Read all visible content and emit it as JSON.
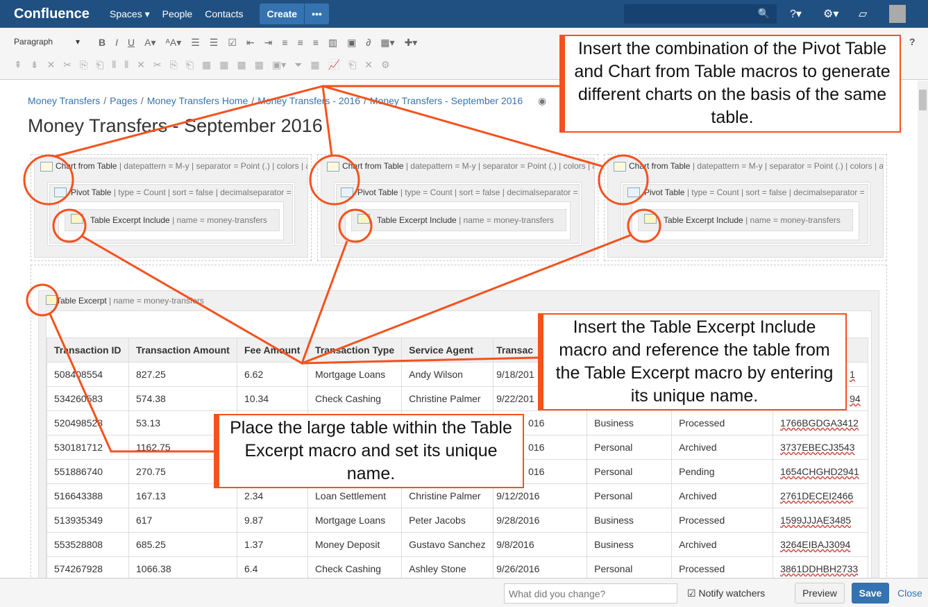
{
  "header": {
    "logo": "Confluence",
    "nav": [
      "Spaces ▾",
      "People",
      "Contacts"
    ],
    "create": "Create",
    "more": "•••",
    "search_icon": "search-icon",
    "help": "?▾",
    "settings": "⚙▾",
    "notifications": "inbox-icon"
  },
  "toolbar": {
    "paragraph": "Paragraph",
    "help": "?"
  },
  "breadcrumb": [
    "Money Transfers",
    "Pages",
    "Money Transfers Home",
    "Money Transfers - 2016",
    "Money Transfers - September 2016"
  ],
  "page_title": "Money Transfers - September 2016",
  "macros": {
    "chart_name": "Chart from Table",
    "chart_params": " | datepattern = M-y | separator = Point (.) | colors | a",
    "pivot_name": "Pivot Table",
    "pivot_params": " | type = Count | sort = false | decimalseparator = P",
    "include_name": "Table Excerpt Include",
    "include_params": " | name = money-transfers",
    "excerpt_name": "Table Excerpt",
    "excerpt_params": " | name = money-transfers"
  },
  "table": {
    "headers": [
      "Transaction ID",
      "Transaction Amount",
      "Fee Amount",
      "Transaction Type",
      "Service Agent",
      "Transac",
      "",
      "",
      ""
    ],
    "rows": [
      [
        "508408554",
        "827.25",
        "6.62",
        "Mortgage Loans",
        "Andy Wilson",
        "9/18/201",
        "",
        "",
        "1"
      ],
      [
        "534260583",
        "574.38",
        "10.34",
        "Check Cashing",
        "Christine Palmer",
        "9/22/201",
        "",
        "",
        "94"
      ],
      [
        "520498528",
        "53.13",
        "",
        "",
        "",
        "016",
        "Business",
        "Processed",
        "1766BGDGA3412"
      ],
      [
        "530181712",
        "1162.75",
        "",
        "",
        "",
        "016",
        "Personal",
        "Archived",
        "3737EBECJ3543"
      ],
      [
        "551886740",
        "270.75",
        "",
        "",
        "",
        "016",
        "Personal",
        "Pending",
        "1654CHGHD2941"
      ],
      [
        "516643388",
        "167.13",
        "2.34",
        "Loan Settlement",
        "Christine Palmer",
        "9/12/2016",
        "Personal",
        "Archived",
        "2761DECEI2466"
      ],
      [
        "513935349",
        "617",
        "9.87",
        "Mortgage Loans",
        "Peter Jacobs",
        "9/28/2016",
        "Business",
        "Processed",
        "1599JJJAE3485"
      ],
      [
        "553528808",
        "685.25",
        "1.37",
        "Money Deposit",
        "Gustavo Sanchez",
        "9/8/2016",
        "Business",
        "Archived",
        "3264EIBAJ3094"
      ],
      [
        "574267928",
        "1066.38",
        "6.4",
        "Check Cashing",
        "Ashley Stone",
        "9/26/2016",
        "Personal",
        "Processed",
        "3861DDHBH2733"
      ]
    ]
  },
  "callouts": {
    "top": "Insert the combination of the Pivot Table and Chart from Table macros to generate different charts on the basis of the same table.",
    "middle": "Insert the Table Excerpt Include macro and reference the table from the Table Excerpt macro by entering its unique name.",
    "bottom": "Place the large table within the Table Excerpt macro and set its unique name."
  },
  "footer": {
    "comment_placeholder": "What did you change?",
    "notify": "Notify watchers",
    "preview": "Preview",
    "save": "Save",
    "close": "Close"
  },
  "colors": {
    "header": "#205081",
    "accent": "#3572b0",
    "annotation": "#f4511e"
  }
}
